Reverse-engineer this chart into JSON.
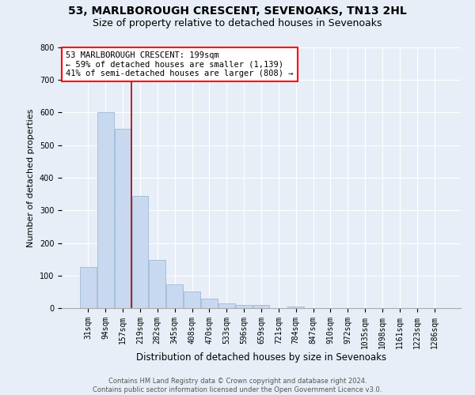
{
  "title1": "53, MARLBOROUGH CRESCENT, SEVENOAKS, TN13 2HL",
  "title2": "Size of property relative to detached houses in Sevenoaks",
  "xlabel": "Distribution of detached houses by size in Sevenoaks",
  "ylabel": "Number of detached properties",
  "footer1": "Contains HM Land Registry data © Crown copyright and database right 2024.",
  "footer2": "Contains public sector information licensed under the Open Government Licence v3.0.",
  "categories": [
    "31sqm",
    "94sqm",
    "157sqm",
    "219sqm",
    "282sqm",
    "345sqm",
    "408sqm",
    "470sqm",
    "533sqm",
    "596sqm",
    "659sqm",
    "721sqm",
    "784sqm",
    "847sqm",
    "910sqm",
    "972sqm",
    "1035sqm",
    "1098sqm",
    "1161sqm",
    "1223sqm",
    "1286sqm"
  ],
  "values": [
    125,
    600,
    550,
    345,
    148,
    73,
    50,
    30,
    15,
    10,
    10,
    0,
    5,
    0,
    0,
    0,
    0,
    0,
    0,
    0,
    0
  ],
  "bar_color": "#c8d9ef",
  "bar_edge_color": "#9db8d8",
  "vline_x": 2.5,
  "vline_color": "#aa0000",
  "annotation_text": "53 MARLBOROUGH CRESCENT: 199sqm\n← 59% of detached houses are smaller (1,139)\n41% of semi-detached houses are larger (808) →",
  "bg_color": "#e8eef8",
  "plot_bg_color": "#e8eef8",
  "ylim": [
    0,
    800
  ],
  "yticks": [
    0,
    100,
    200,
    300,
    400,
    500,
    600,
    700,
    800
  ],
  "grid_color": "#ffffff",
  "title_fontsize": 10,
  "subtitle_fontsize": 9,
  "tick_fontsize": 7,
  "ylabel_fontsize": 8,
  "xlabel_fontsize": 8.5,
  "footer_fontsize": 6,
  "ann_fontsize": 7.5
}
